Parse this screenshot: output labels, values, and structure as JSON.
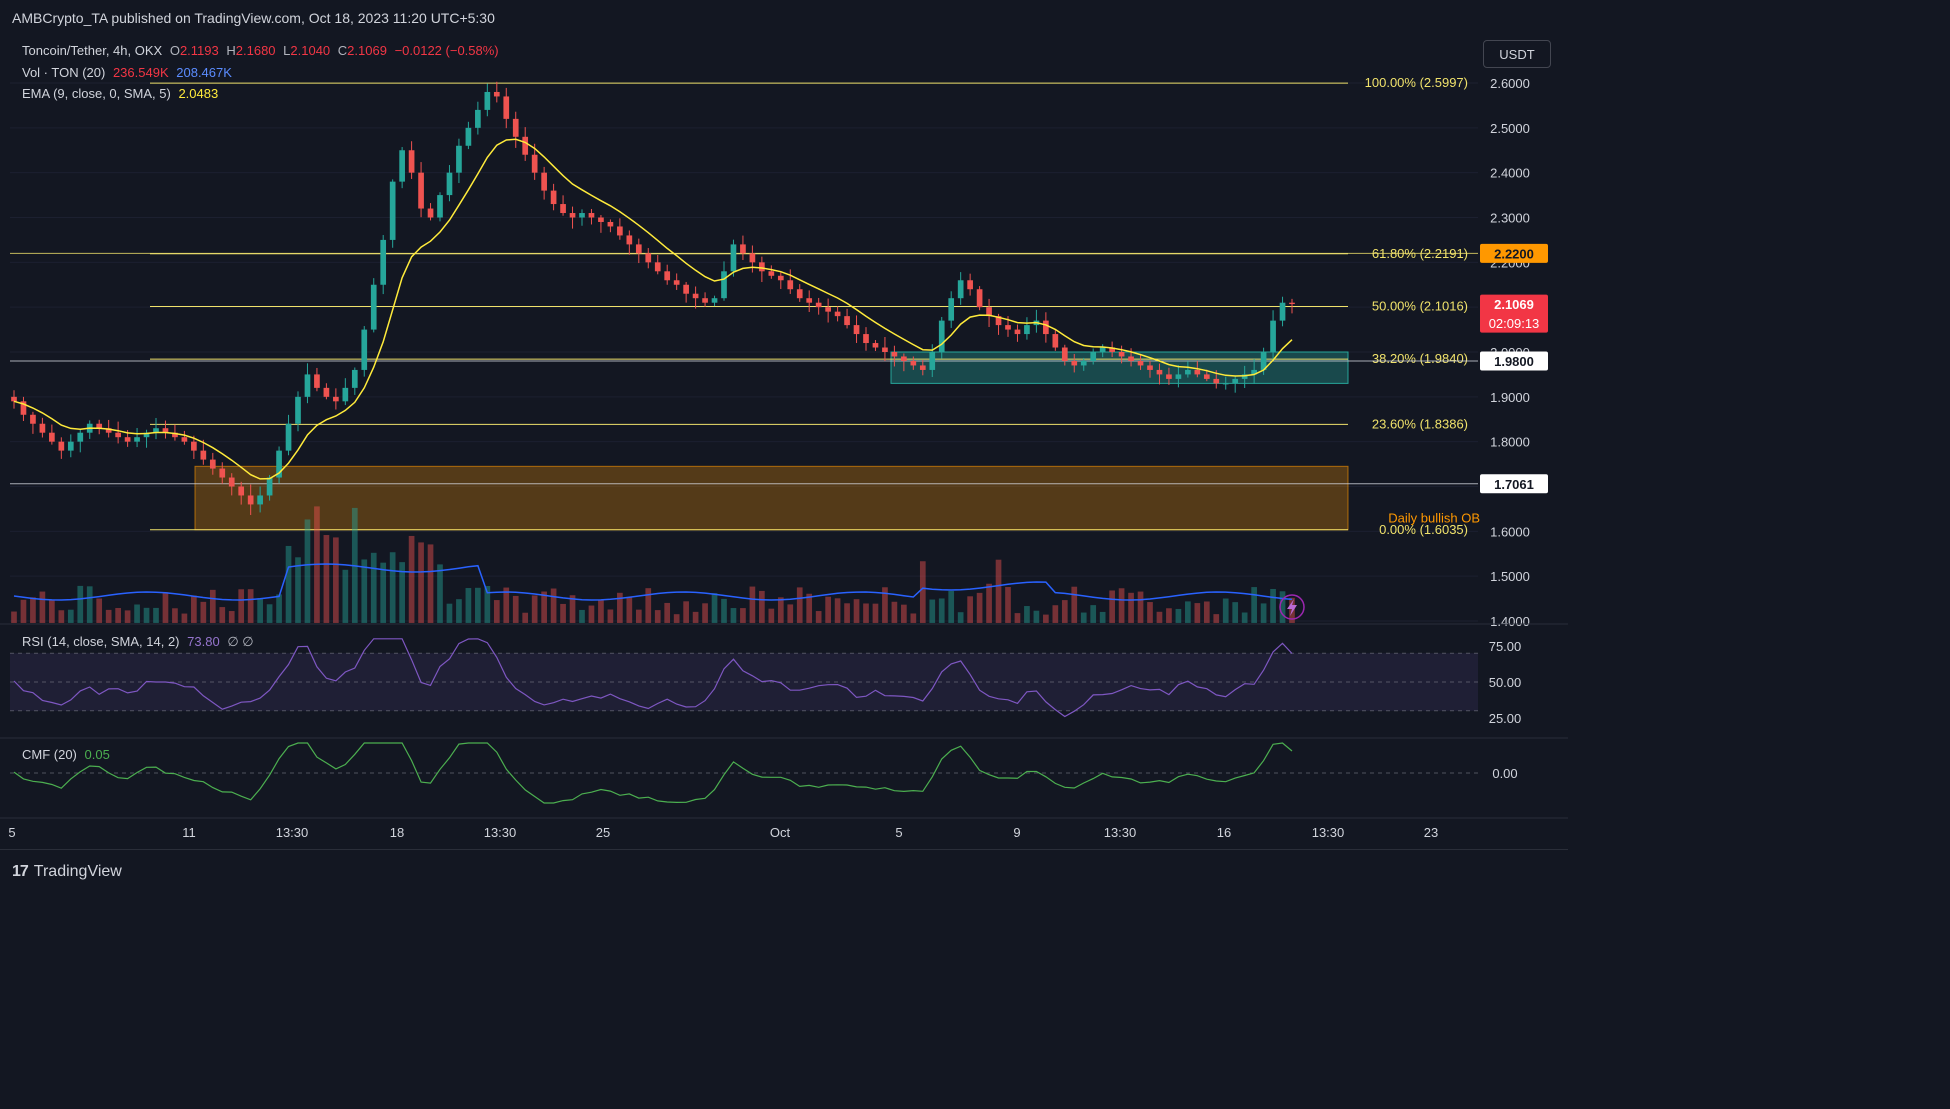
{
  "header": {
    "publish_text": "AMBCrypto_TA published on TradingView.com, Oct 18, 2023 11:20 UTC+5:30"
  },
  "legend": {
    "symbol": "Toncoin/Tether, 4h, OKX",
    "o_label": "O",
    "o_value": "2.1193",
    "h_label": "H",
    "h_value": "2.1680",
    "l_label": "L",
    "l_value": "2.1040",
    "c_label": "C",
    "c_value": "2.1069",
    "change": "−0.0122 (−0.58%)",
    "vol_label": "Vol · TON (20)",
    "vol_value": "236.549K",
    "vol_ma": "208.467K",
    "ema_label": "EMA (9, close, 0, SMA, 5)",
    "ema_value": "2.0483",
    "rsi_label": "RSI (14, close, SMA, 14, 2)",
    "rsi_value": "73.80",
    "rsi_extra": "∅ ∅",
    "cmf_label": "CMF (20)",
    "cmf_value": "0.05"
  },
  "currency_button": "USDT",
  "footer": {
    "brand": "TradingView",
    "logo": "17"
  },
  "colors": {
    "up": "#26a69a",
    "down": "#ef5350",
    "ema": "#ffeb3b",
    "fib": "#f0e26b",
    "rsi": "#7e57c2",
    "cmf": "#4caf50",
    "volma": "#2962ff"
  },
  "chart_data": {
    "type": "candlestick",
    "y_axis_ticks": [
      "2.6000",
      "2.5000",
      "2.4000",
      "2.3000",
      "2.2000",
      "2.1000",
      "2.0000",
      "1.9000",
      "1.8000",
      "1.7000",
      "1.6000",
      "1.5000",
      "1.4000"
    ],
    "x_axis_ticks": [
      "5",
      "11",
      "13:30",
      "18",
      "13:30",
      "25",
      "Oct",
      "5",
      "9",
      "13:30",
      "16",
      "13:30",
      "23"
    ],
    "fib_levels": [
      {
        "label": "100.00% (2.5997)",
        "price": 2.5997
      },
      {
        "label": "61.80% (2.2191)",
        "price": 2.2191
      },
      {
        "label": "50.00% (2.1016)",
        "price": 2.1016
      },
      {
        "label": "38.20% (1.9840)",
        "price": 1.984
      },
      {
        "label": "23.60% (1.8386)",
        "price": 1.8386
      },
      {
        "label": "0.00% (1.6035)",
        "price": 1.6035
      }
    ],
    "price_tags": [
      {
        "value": "2.2200",
        "price": 2.22,
        "style": "orange"
      },
      {
        "value": "2.1069",
        "price": 2.1069,
        "style": "red",
        "countdown": "02:09:13"
      },
      {
        "value": "1.9800",
        "price": 1.98,
        "style": "white"
      },
      {
        "value": "1.7061",
        "price": 1.7061,
        "style": "white"
      }
    ],
    "zones": [
      {
        "label": "",
        "from": 1.93,
        "to": 2.0,
        "color": "teal"
      },
      {
        "label": "Daily bullish OB",
        "from": 1.6035,
        "to": 1.745,
        "color": "orange"
      }
    ],
    "rsi_ticks": [
      "75.00",
      "50.00",
      "25.00"
    ],
    "cmf_ticks": [
      "0.00"
    ],
    "close_series": [
      1.89,
      1.86,
      1.84,
      1.82,
      1.8,
      1.78,
      1.8,
      1.82,
      1.84,
      1.83,
      1.82,
      1.81,
      1.8,
      1.81,
      1.82,
      1.83,
      1.82,
      1.81,
      1.8,
      1.78,
      1.76,
      1.74,
      1.72,
      1.7,
      1.68,
      1.66,
      1.68,
      1.72,
      1.78,
      1.84,
      1.9,
      1.95,
      1.92,
      1.9,
      1.89,
      1.92,
      1.96,
      2.05,
      2.15,
      2.25,
      2.38,
      2.45,
      2.4,
      2.32,
      2.3,
      2.35,
      2.4,
      2.46,
      2.5,
      2.54,
      2.58,
      2.57,
      2.52,
      2.48,
      2.44,
      2.4,
      2.36,
      2.33,
      2.31,
      2.3,
      2.31,
      2.3,
      2.29,
      2.28,
      2.26,
      2.24,
      2.22,
      2.2,
      2.18,
      2.16,
      2.15,
      2.13,
      2.12,
      2.11,
      2.12,
      2.18,
      2.24,
      2.22,
      2.2,
      2.18,
      2.17,
      2.16,
      2.14,
      2.12,
      2.11,
      2.1,
      2.09,
      2.08,
      2.06,
      2.04,
      2.02,
      2.01,
      2.0,
      1.99,
      1.98,
      1.97,
      1.96,
      2.0,
      2.07,
      2.12,
      2.16,
      2.14,
      2.1,
      2.08,
      2.06,
      2.05,
      2.04,
      2.06,
      2.07,
      2.04,
      2.01,
      1.98,
      1.97,
      1.98,
      2.0,
      2.01,
      2.0,
      1.99,
      1.98,
      1.97,
      1.96,
      1.95,
      1.94,
      1.95,
      1.96,
      1.95,
      1.94,
      1.93,
      1.93,
      1.94,
      1.95,
      1.96,
      2.0,
      2.07,
      2.11,
      2.107
    ]
  }
}
